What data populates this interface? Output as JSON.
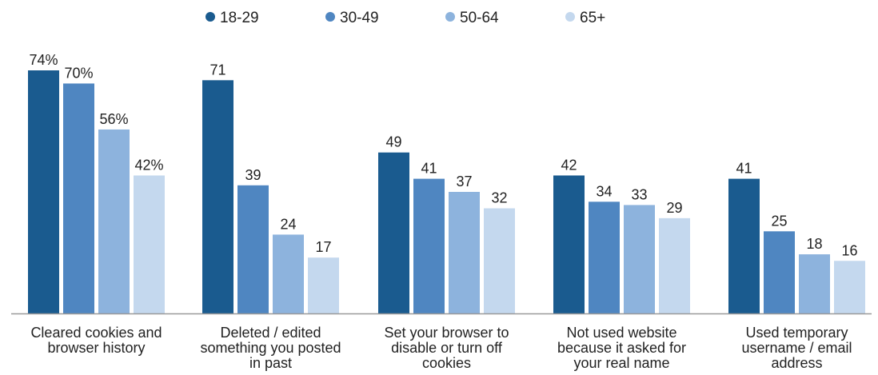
{
  "chart_data": {
    "type": "bar",
    "categories": [
      [
        "Cleared cookies and",
        "browser history"
      ],
      [
        "Deleted / edited",
        "something you posted",
        "in past"
      ],
      [
        "Set your browser to",
        "disable or turn off",
        "cookies"
      ],
      [
        "Not used website",
        "because it asked for",
        "your real name"
      ],
      [
        "Used temporary",
        "username / email",
        "address"
      ]
    ],
    "series": [
      {
        "name": "18-29",
        "color": "#1a5b8f",
        "values": [
          74,
          71,
          49,
          42,
          41
        ],
        "labels": [
          "74%",
          "71",
          "49",
          "42",
          "41"
        ]
      },
      {
        "name": "30-49",
        "color": "#4f86c1",
        "values": [
          70,
          39,
          41,
          34,
          25
        ],
        "labels": [
          "70%",
          "39",
          "41",
          "34",
          "25"
        ]
      },
      {
        "name": "50-64",
        "color": "#8db3dd",
        "values": [
          56,
          24,
          37,
          33,
          18
        ],
        "labels": [
          "56%",
          "24",
          "37",
          "33",
          "18"
        ]
      },
      {
        "name": "65+",
        "color": "#c4d8ee",
        "values": [
          42,
          17,
          32,
          29,
          16
        ],
        "labels": [
          "42%",
          "17",
          "32",
          "29",
          "16"
        ]
      }
    ],
    "ylim": [
      0,
      74
    ],
    "grid": false,
    "legend_position": "top-center",
    "axis_color": "#999999"
  }
}
